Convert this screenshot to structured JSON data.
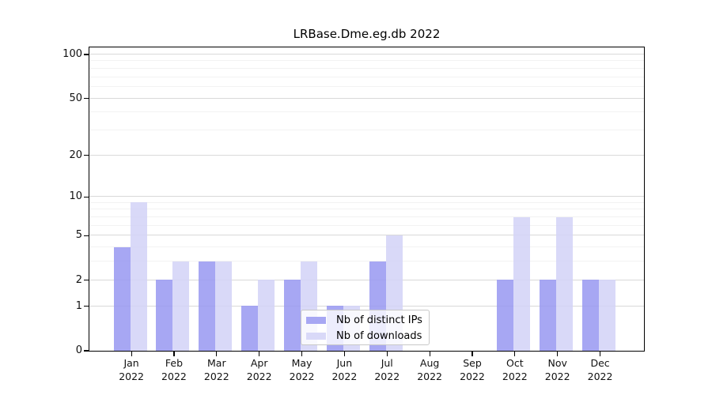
{
  "title": "LRBase.Dme.eg.db 2022",
  "legend": {
    "items": [
      {
        "label": "Nb of distinct IPs",
        "color": "#a7a7f3"
      },
      {
        "label": "Nb of downloads",
        "color": "#d9d9f8"
      }
    ]
  },
  "colors": {
    "ips_bar": "#9898f1",
    "downloads_bar": "#d2d2f7",
    "major_grid": "#d9d9d9",
    "minor_grid": "#f2f2f2",
    "axis": "#000000"
  },
  "chart_data": {
    "type": "bar",
    "title": "LRBase.Dme.eg.db 2022",
    "categories": [
      "Jan 2022",
      "Feb 2022",
      "Mar 2022",
      "Apr 2022",
      "May 2022",
      "Jun 2022",
      "Jul 2022",
      "Aug 2022",
      "Sep 2022",
      "Oct 2022",
      "Nov 2022",
      "Dec 2022"
    ],
    "series": [
      {
        "name": "Nb of distinct IPs",
        "values": [
          4,
          2,
          3,
          1,
          2,
          1,
          3,
          0,
          0,
          2,
          2,
          2
        ]
      },
      {
        "name": "Nb of downloads",
        "values": [
          9,
          3,
          3,
          2,
          3,
          1,
          5,
          0,
          0,
          7,
          7,
          2
        ]
      }
    ],
    "xlabel": "",
    "ylabel": "",
    "yscale": "log1p",
    "ylim": [
      0,
      112
    ],
    "yticks": [
      100,
      50,
      20,
      10,
      5,
      2,
      1,
      0
    ],
    "yticks_minor": [
      3,
      4,
      6,
      7,
      8,
      9,
      30,
      40,
      60,
      70,
      80,
      90
    ],
    "grid": "horizontal",
    "legend_position": "inside lower center"
  }
}
